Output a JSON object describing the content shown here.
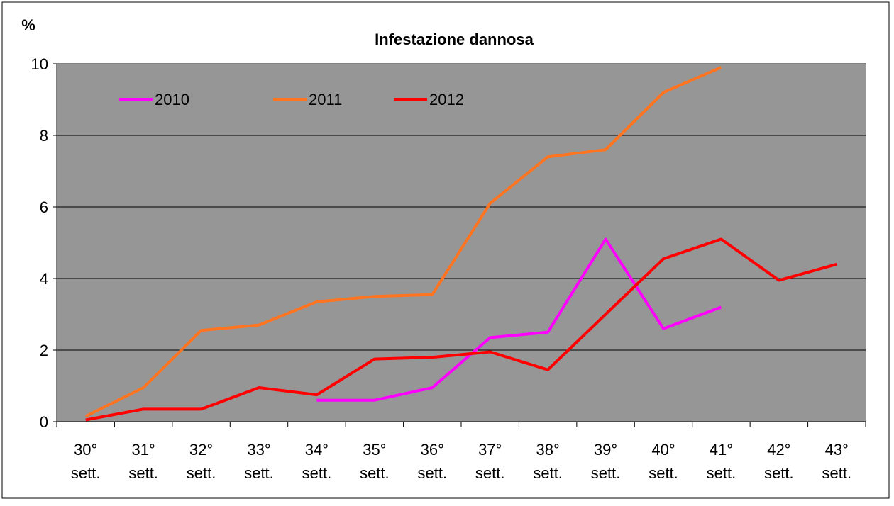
{
  "chart_data": {
    "type": "line",
    "title": "Infestazione dannosa",
    "y_label": "%",
    "categories": [
      "30° sett.",
      "31° sett.",
      "32° sett.",
      "33° sett.",
      "34° sett.",
      "35° sett.",
      "36° sett.",
      "37° sett.",
      "38° sett.",
      "39° sett.",
      "40° sett.",
      "41° sett.",
      "42° sett.",
      "43° sett."
    ],
    "series": [
      {
        "name": "2010",
        "color": "#ff00ff",
        "values": [
          null,
          null,
          null,
          null,
          0.6,
          0.6,
          0.95,
          2.35,
          2.5,
          5.1,
          2.6,
          3.2,
          null,
          null
        ]
      },
      {
        "name": "2011",
        "color": "#ff7420",
        "values": [
          0.15,
          0.95,
          2.55,
          2.7,
          3.35,
          3.5,
          3.55,
          6.1,
          7.4,
          7.6,
          9.2,
          9.9,
          null,
          null
        ]
      },
      {
        "name": "2012",
        "color": "#ff0000",
        "values": [
          0.05,
          0.35,
          0.35,
          0.95,
          0.75,
          1.75,
          1.8,
          1.95,
          1.45,
          3.0,
          4.55,
          5.1,
          3.95,
          4.4
        ]
      }
    ],
    "ylim": [
      0,
      10
    ],
    "yticks": [
      0,
      2,
      4,
      6,
      8,
      10
    ],
    "grid": true,
    "legend": "top-left",
    "background": "#969696"
  }
}
